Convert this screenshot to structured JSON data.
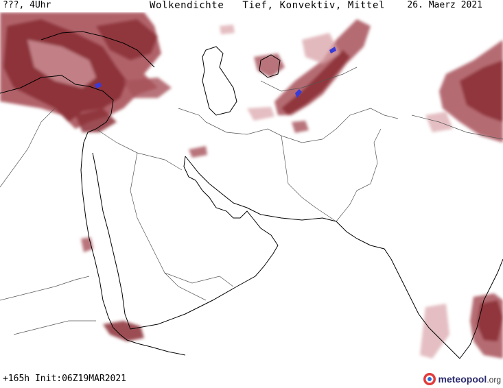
{
  "header": {
    "left": "???, 4Uhr",
    "title": "Wolkendichte   Tief, Konvektiv, Mittel",
    "right": "26. Maerz 2021"
  },
  "footer": {
    "left": "+165h Init:06Z19MAR2021"
  },
  "logo": {
    "name": "meteo",
    "mid": "pool",
    "suffix": ".org"
  },
  "colors": {
    "cloud_dense": "#8b2f35",
    "cloud_medium": "#a8525a",
    "cloud_light": "#d8a3a8",
    "convective": "#3a3ad8",
    "coast": "#000000",
    "border": "#555555"
  }
}
